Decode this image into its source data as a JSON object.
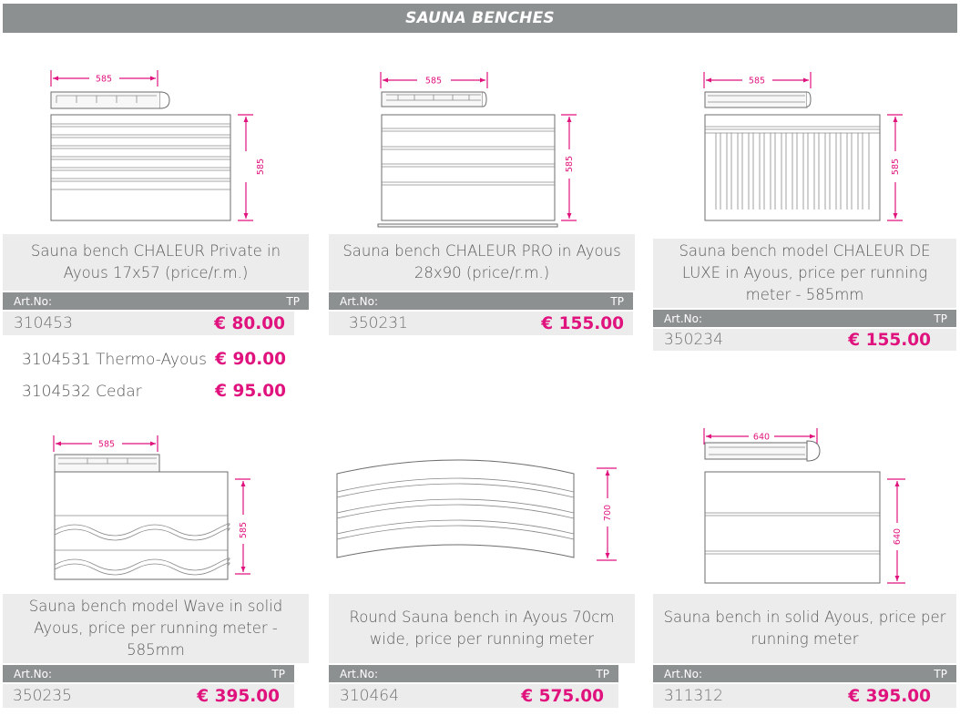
{
  "page": {
    "title": "SAUNA BENCHES"
  },
  "labels": {
    "art_no": "Art.No:",
    "tp": "TP"
  },
  "accent_color": "#e0137e",
  "header_color": "#8c9091",
  "products": [
    {
      "name": "Sauna bench CHALEUR Private in Ayous 17x57 (price/r.m.)",
      "code": "310453",
      "price": "€ 80.00",
      "dims": {
        "width": "585",
        "height": "585"
      },
      "variants": [
        {
          "label": "3104531 Thermo-Ayous",
          "price": "€ 90.00"
        },
        {
          "label": "3104532 Cedar",
          "price": "€ 95.00"
        }
      ]
    },
    {
      "name": "Sauna bench CHALEUR PRO in Ayous 28x90 (price/r.m.)",
      "code": "350231",
      "price": "€ 155.00",
      "dims": {
        "width": "585",
        "height": "585"
      }
    },
    {
      "name": "Sauna bench model CHALEUR DE LUXE in Ayous, price per running meter - 585mm",
      "code": "350234",
      "price": "€ 155.00",
      "dims": {
        "width": "585",
        "height": "585"
      }
    },
    {
      "name": "Sauna bench model Wave in solid Ayous, price per running meter - 585mm",
      "code": "350235",
      "price": "€ 395.00",
      "dims": {
        "width": "585",
        "height": "585"
      }
    },
    {
      "name": "Round Sauna bench in Ayous 70cm wide, price per running meter",
      "code": "310464",
      "price": "€ 575.00",
      "dims": {
        "height": "700"
      }
    },
    {
      "name": "Sauna bench in solid Ayous, price per running meter",
      "code": "311312",
      "price": "€ 395.00",
      "dims": {
        "width": "640",
        "height": "640"
      }
    }
  ]
}
